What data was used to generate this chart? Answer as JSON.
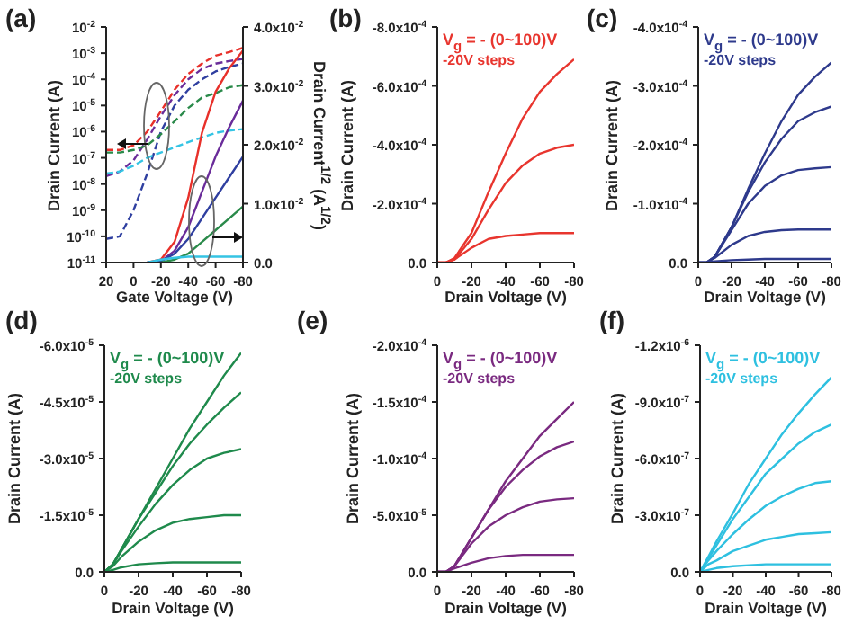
{
  "chart_data": [
    {
      "type": "line",
      "title": "(a)",
      "xlabel": "Gate Voltage (V)",
      "ylabel": "Drain Current (A)",
      "y2label": "Drain Current$^{1/2}$ (A$^{1/2}$)",
      "log": "y",
      "marker": "none",
      "line_style": "solid",
      "x": [
        20,
        10,
        0,
        -10,
        -20,
        -30,
        -40,
        -50,
        -60,
        -70,
        -80
      ],
      "xlim": [
        20,
        -80
      ],
      "xticks": [
        20,
        0,
        -20,
        -40,
        -60,
        -80
      ],
      "ylim": [
        1e-11,
        0.01
      ],
      "yticks": [
        {
          "value": 0.01,
          "label": "10$^{-2}$"
        },
        {
          "value": 0.001,
          "label": "10$^{-3}$"
        },
        {
          "value": 0.0001,
          "label": "10$^{-4}$"
        },
        {
          "value": 1e-05,
          "label": "10$^{-5}$"
        },
        {
          "value": 1e-06,
          "label": "10$^{-6}$"
        },
        {
          "value": 1e-07,
          "label": "10$^{-7}$"
        },
        {
          "value": 1e-08,
          "label": "10$^{-8}$"
        },
        {
          "value": 1e-09,
          "label": "10$^{-9}$"
        },
        {
          "value": 1e-10,
          "label": "10$^{-10}$"
        },
        {
          "value": 1e-11,
          "label": "10$^{-11}$"
        }
      ],
      "y2lim": [
        0,
        0.04
      ],
      "y2ticks": [
        {
          "value": 0,
          "label": "0.0"
        },
        {
          "value": 0.01,
          "label": "1.0x10$^{-2}$"
        },
        {
          "value": 0.02,
          "label": "2.0x10$^{-2}$"
        },
        {
          "value": 0.03,
          "label": "3.0x10$^{-2}$"
        },
        {
          "value": 0.04,
          "label": "4.0x10$^{-2}$"
        }
      ],
      "series": [
        {
          "color": "#e8302a",
          "line_style": "dashed",
          "values": [
            2e-07,
            2e-07,
            3e-07,
            1e-06,
            6e-06,
            4e-05,
            0.00016,
            0.0004,
            0.0008,
            0.0011,
            0.0016
          ]
        },
        {
          "color": "#6a2c9a",
          "line_style": "dashed",
          "values": [
            2e-08,
            3e-08,
            8e-08,
            5e-07,
            4e-06,
            2.5e-05,
            0.0001,
            0.00025,
            0.0004,
            0.0005,
            0.0006
          ]
        },
        {
          "color": "#2f3fa0",
          "line_style": "dashed",
          "values": [
            8e-11,
            1e-10,
            1e-09,
            2.5e-08,
            1e-06,
            1e-05,
            4e-05,
            0.0001,
            0.0002,
            0.0003,
            0.0004
          ]
        },
        {
          "color": "#2a8a4a",
          "line_style": "dashed",
          "values": [
            1.6e-07,
            1.6e-07,
            2e-07,
            3e-07,
            8e-07,
            2.5e-06,
            8e-06,
            2e-05,
            3e-05,
            5e-05,
            6e-05
          ]
        },
        {
          "color": "#35c4e4",
          "line_style": "dashed",
          "values": [
            2.5e-08,
            3e-08,
            5e-08,
            1e-07,
            1.6e-07,
            2.5e-07,
            4e-07,
            6e-07,
            9e-07,
            1.1e-06,
            1.25e-06
          ]
        },
        {
          "color": "#e8302a",
          "axis": "y2",
          "values": [
            null,
            null,
            null,
            0,
            0.0005,
            0.0035,
            0.011,
            0.022,
            0.029,
            0.033,
            0.036
          ]
        },
        {
          "color": "#6a2c9a",
          "axis": "y2",
          "values": [
            null,
            null,
            null,
            0,
            0.0002,
            0.002,
            0.006,
            0.012,
            0.018,
            0.023,
            0.0275
          ]
        },
        {
          "color": "#2f3fa0",
          "axis": "y2",
          "values": [
            null,
            null,
            null,
            0,
            0.0002,
            0.0015,
            0.004,
            0.0075,
            0.011,
            0.0145,
            0.018
          ]
        },
        {
          "color": "#2a8a4a",
          "axis": "y2",
          "values": [
            null,
            null,
            null,
            null,
            0,
            0.0005,
            0.0015,
            0.0035,
            0.0055,
            0.0075,
            0.0095
          ]
        },
        {
          "color": "#35c4e4",
          "axis": "y2",
          "values": [
            null,
            null,
            null,
            0,
            0.0005,
            0.0008,
            0.001,
            0.001,
            0.001,
            0.001,
            0.001
          ]
        }
      ]
    },
    {
      "type": "line",
      "title": "(b)",
      "xlabel": "Drain Voltage (V)",
      "ylabel": "Drain Current (A)",
      "marker": "none",
      "line_style": "solid",
      "annotations": [
        "V$_{g}$ = - (0~100)V",
        "-20V steps"
      ],
      "x": [
        0,
        -5,
        -10,
        -20,
        -30,
        -40,
        -50,
        -60,
        -70,
        -80
      ],
      "xlim": [
        0,
        -80
      ],
      "xticks": [
        0,
        -20,
        -40,
        -60,
        -80
      ],
      "ylim": [
        0,
        -0.0008
      ],
      "yticks": [
        {
          "value": 0,
          "label": "0.0"
        },
        {
          "value": -0.0002,
          "label": "-2.0x10$^{-4}$"
        },
        {
          "value": -0.0004,
          "label": "-4.0x10$^{-4}$"
        },
        {
          "value": -0.0006,
          "label": "-6.0x10$^{-4}$"
        },
        {
          "value": -0.0008,
          "label": "-8.0x10$^{-4}$"
        }
      ],
      "series": [
        {
          "color": "#e8352e",
          "values": [
            0,
            0,
            -1.5e-05,
            -0.0001,
            -0.00024,
            -0.00037,
            -0.00049,
            -0.00058,
            -0.00064,
            -0.00069
          ]
        },
        {
          "color": "#e8352e",
          "values": [
            0,
            0,
            -1e-05,
            -8e-05,
            -0.00018,
            -0.00027,
            -0.00033,
            -0.00037,
            -0.00039,
            -0.0004
          ]
        },
        {
          "color": "#e8352e",
          "values": [
            0,
            0,
            -1e-05,
            -5e-05,
            -8e-05,
            -9e-05,
            -9.5e-05,
            -0.0001,
            -0.0001,
            -0.0001
          ]
        }
      ]
    },
    {
      "type": "line",
      "title": "(c)",
      "xlabel": "Drain Voltage (V)",
      "ylabel": "Drain Current (A)",
      "marker": "none",
      "line_style": "solid",
      "annotations": [
        "V$_{g}$ = - (0~100)V",
        "-20V steps"
      ],
      "x": [
        0,
        -5,
        -10,
        -20,
        -30,
        -40,
        -50,
        -60,
        -70,
        -80
      ],
      "xlim": [
        0,
        -80
      ],
      "xticks": [
        0,
        -20,
        -40,
        -60,
        -80
      ],
      "ylim": [
        0,
        -0.0004
      ],
      "yticks": [
        {
          "value": 0,
          "label": "0.0"
        },
        {
          "value": -0.0001,
          "label": "-1.0x10$^{-4}$"
        },
        {
          "value": -0.0002,
          "label": "-2.0x10$^{-4}$"
        },
        {
          "value": -0.0003,
          "label": "-3.0x10$^{-4}$"
        },
        {
          "value": -0.0004,
          "label": "-4.0x10$^{-4}$"
        }
      ],
      "series": [
        {
          "color": "#2e3a8c",
          "values": [
            0,
            0,
            -1e-05,
            -6e-05,
            -0.000125,
            -0.000185,
            -0.00024,
            -0.000285,
            -0.000315,
            -0.00034
          ]
        },
        {
          "color": "#2e3a8c",
          "values": [
            0,
            0,
            -1e-05,
            -6e-05,
            -0.00012,
            -0.00017,
            -0.00021,
            -0.00024,
            -0.000255,
            -0.000265
          ]
        },
        {
          "color": "#2e3a8c",
          "values": [
            0,
            0,
            -1e-05,
            -5.5e-05,
            -0.0001,
            -0.00013,
            -0.000148,
            -0.000157,
            -0.00016,
            -0.000162
          ]
        },
        {
          "color": "#2e3a8c",
          "values": [
            0,
            0,
            -8e-06,
            -3e-05,
            -4.5e-05,
            -5.2e-05,
            -5.5e-05,
            -5.6e-05,
            -5.6e-05,
            -5.6e-05
          ]
        },
        {
          "color": "#2e3a8c",
          "values": [
            0,
            0,
            -2e-06,
            -4e-06,
            -5e-06,
            -6e-06,
            -6e-06,
            -6e-06,
            -6e-06,
            -6e-06
          ]
        }
      ]
    },
    {
      "type": "line",
      "title": "(d)",
      "xlabel": "Drain Voltage (V)",
      "ylabel": "Drain Current (A)",
      "marker": "none",
      "line_style": "solid",
      "annotations": [
        "V$_{g}$ = - (0~100)V",
        "-20V steps"
      ],
      "x": [
        0,
        -5,
        -10,
        -20,
        -30,
        -40,
        -50,
        -60,
        -70,
        -80
      ],
      "xlim": [
        0,
        -80
      ],
      "xticks": [
        0,
        -20,
        -40,
        -60,
        -80
      ],
      "ylim": [
        0,
        -6e-05
      ],
      "yticks": [
        {
          "value": 0,
          "label": "0.0"
        },
        {
          "value": -1.5e-05,
          "label": "-1.5x10$^{-5}$"
        },
        {
          "value": -3e-05,
          "label": "-3.0x10$^{-5}$"
        },
        {
          "value": -4.5e-05,
          "label": "-4.5x10$^{-5}$"
        },
        {
          "value": -6e-05,
          "label": "-6.0x10$^{-5}$"
        }
      ],
      "series": [
        {
          "color": "#1f8a4c",
          "values": [
            0,
            -2e-06,
            -6e-06,
            -1.4e-05,
            -2.2e-05,
            -3e-05,
            -3.8e-05,
            -4.5e-05,
            -5.2e-05,
            -5.8e-05
          ]
        },
        {
          "color": "#1f8a4c",
          "values": [
            0,
            -2e-06,
            -6e-06,
            -1.4e-05,
            -2.1e-05,
            -2.8e-05,
            -3.4e-05,
            -3.9e-05,
            -4.35e-05,
            -4.75e-05
          ]
        },
        {
          "color": "#1f8a4c",
          "values": [
            0,
            -2e-06,
            -5.5e-06,
            -1.2e-05,
            -1.8e-05,
            -2.3e-05,
            -2.7e-05,
            -3e-05,
            -3.15e-05,
            -3.25e-05
          ]
        },
        {
          "color": "#1f8a4c",
          "values": [
            0,
            -1.5e-06,
            -4e-06,
            -8e-06,
            -1.1e-05,
            -1.3e-05,
            -1.4e-05,
            -1.45e-05,
            -1.5e-05,
            -1.5e-05
          ]
        },
        {
          "color": "#1f8a4c",
          "values": [
            0,
            -5e-07,
            -1.2e-06,
            -2e-06,
            -2.3e-06,
            -2.5e-06,
            -2.5e-06,
            -2.5e-06,
            -2.5e-06,
            -2.5e-06
          ]
        }
      ]
    },
    {
      "type": "line",
      "title": "(e)",
      "xlabel": "Drain Voltage (V)",
      "ylabel": "Drain Current (A)",
      "marker": "none",
      "line_style": "solid",
      "annotations": [
        "V$_{g}$ = - (0~100)V",
        "-20V steps"
      ],
      "x": [
        0,
        -5,
        -10,
        -20,
        -30,
        -40,
        -50,
        -60,
        -70,
        -80
      ],
      "xlim": [
        0,
        -80
      ],
      "xticks": [
        0,
        -20,
        -40,
        -60,
        -80
      ],
      "ylim": [
        0,
        -0.0002
      ],
      "yticks": [
        {
          "value": 0,
          "label": "0.0"
        },
        {
          "value": -5e-05,
          "label": "-5.0x10$^{-5}$"
        },
        {
          "value": -0.0001,
          "label": "-1.0x10$^{-4}$"
        },
        {
          "value": -0.00015,
          "label": "-1.5x10$^{-4}$"
        },
        {
          "value": -0.0002,
          "label": "-2.0x10$^{-4}$"
        }
      ],
      "series": [
        {
          "color": "#7a2a80",
          "values": [
            0,
            0,
            -5e-06,
            -3e-05,
            -5.5e-05,
            -8e-05,
            -0.0001,
            -0.00012,
            -0.000135,
            -0.00015
          ]
        },
        {
          "color": "#7a2a80",
          "values": [
            0,
            0,
            -5e-06,
            -3e-05,
            -5.5e-05,
            -7.5e-05,
            -9e-05,
            -0.000102,
            -0.00011,
            -0.000115
          ]
        },
        {
          "color": "#7a2a80",
          "values": [
            0,
            0,
            -5e-06,
            -2.5e-05,
            -4e-05,
            -5e-05,
            -5.7e-05,
            -6.2e-05,
            -6.4e-05,
            -6.5e-05
          ]
        },
        {
          "color": "#7a2a80",
          "values": [
            0,
            0,
            -3e-06,
            -8e-06,
            -1.2e-05,
            -1.4e-05,
            -1.5e-05,
            -1.5e-05,
            -1.5e-05,
            -1.5e-05
          ]
        }
      ]
    },
    {
      "type": "line",
      "title": "(f)",
      "xlabel": "Drain Voltage (V)",
      "ylabel": "Drain Current (A)",
      "marker": "none",
      "line_style": "solid",
      "annotations": [
        "V$_{g}$ = - (0~100)V",
        "-20V steps"
      ],
      "x": [
        0,
        -5,
        -10,
        -20,
        -30,
        -40,
        -50,
        -60,
        -70,
        -80
      ],
      "xlim": [
        0,
        -80
      ],
      "xticks": [
        0,
        -20,
        -40,
        -60,
        -80
      ],
      "ylim": [
        0,
        -1.2e-06
      ],
      "yticks": [
        {
          "value": 0,
          "label": "0.0"
        },
        {
          "value": -3e-07,
          "label": "-3.0x10$^{-7}$"
        },
        {
          "value": -6e-07,
          "label": "-6.0x10$^{-7}$"
        },
        {
          "value": -9e-07,
          "label": "-9.0x10$^{-7}$"
        },
        {
          "value": -1.2e-06,
          "label": "-1.2x10$^{-6}$"
        }
      ],
      "series": [
        {
          "color": "#2ec0e0",
          "values": [
            0,
            -8e-08,
            -1.6e-07,
            -3.1e-07,
            -4.7e-07,
            -6e-07,
            -7.3e-07,
            -8.4e-07,
            -9.4e-07,
            -1.03e-06
          ]
        },
        {
          "color": "#2ec0e0",
          "values": [
            0,
            -7e-08,
            -1.4e-07,
            -2.8e-07,
            -4e-07,
            -5.2e-07,
            -6e-07,
            -6.8e-07,
            -7.4e-07,
            -7.8e-07
          ]
        },
        {
          "color": "#2ec0e0",
          "values": [
            0,
            -6e-08,
            -1.1e-07,
            -2e-07,
            -2.8e-07,
            -3.5e-07,
            -4e-07,
            -4.4e-07,
            -4.7e-07,
            -4.8e-07
          ]
        },
        {
          "color": "#2ec0e0",
          "values": [
            0,
            -4e-08,
            -6e-08,
            -1.1e-07,
            -1.4e-07,
            -1.7e-07,
            -1.85e-07,
            -2e-07,
            -2.05e-07,
            -2.1e-07
          ]
        },
        {
          "color": "#2ec0e0",
          "values": [
            0,
            -1e-08,
            -2e-08,
            -3e-08,
            -3.5e-08,
            -4e-08,
            -4e-08,
            -4e-08,
            -4e-08,
            -4e-08
          ]
        }
      ]
    }
  ]
}
